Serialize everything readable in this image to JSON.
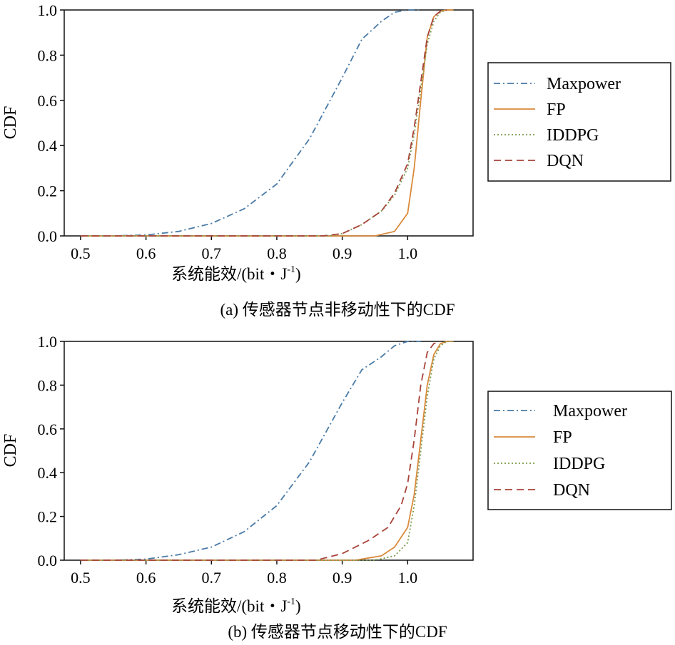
{
  "chart_data": [
    {
      "type": "line",
      "title": "",
      "caption": "(a) 传感器节点非移动性下的CDF",
      "xlabel": "系统能效/(bit・J",
      "xlabel_sup": "-1",
      "xlabel_tail": ")",
      "ylabel": "CDF",
      "xlim": [
        0.475,
        1.1
      ],
      "ylim": [
        0.0,
        1.0
      ],
      "xticks": [
        0.5,
        0.6,
        0.7,
        0.8,
        0.9,
        1.0
      ],
      "xtick_labels": [
        "0.5",
        "0.6",
        "0.7",
        "0.8",
        "0.9",
        "1.0"
      ],
      "yticks": [
        0.0,
        0.2,
        0.4,
        0.6,
        0.8,
        1.0
      ],
      "ytick_labels": [
        "0.0",
        "0.2",
        "0.4",
        "0.6",
        "0.8",
        "1.0"
      ],
      "grid": false,
      "legend_position": "outside-right",
      "series": [
        {
          "name": "Maxpower",
          "color": "#4a7aa6",
          "dash": "dashdot",
          "x": [
            0.5,
            0.55,
            0.6,
            0.65,
            0.7,
            0.75,
            0.8,
            0.85,
            0.9,
            0.93,
            0.96,
            0.98,
            1.0,
            1.02
          ],
          "y": [
            0.0,
            0.0,
            0.004,
            0.02,
            0.055,
            0.12,
            0.23,
            0.43,
            0.7,
            0.87,
            0.95,
            0.99,
            1.0,
            1.0
          ]
        },
        {
          "name": "FP",
          "color": "#d98a3c",
          "dash": "solid",
          "x": [
            0.5,
            0.95,
            0.98,
            1.0,
            1.01,
            1.02,
            1.03,
            1.04,
            1.05,
            1.06,
            1.07
          ],
          "y": [
            0.0,
            0.0,
            0.02,
            0.1,
            0.3,
            0.6,
            0.88,
            0.97,
            0.995,
            1.0,
            1.0
          ]
        },
        {
          "name": "IDDPG",
          "color": "#7a9a4a",
          "dash": "dotted",
          "x": [
            0.5,
            0.88,
            0.9,
            0.93,
            0.96,
            0.98,
            1.0,
            1.01,
            1.02,
            1.03,
            1.04,
            1.05,
            1.06
          ],
          "y": [
            0.0,
            0.0,
            0.01,
            0.05,
            0.11,
            0.18,
            0.3,
            0.45,
            0.65,
            0.85,
            0.95,
            0.99,
            1.0
          ]
        },
        {
          "name": "DQN",
          "color": "#a8433a",
          "dash": "dashed",
          "x": [
            0.5,
            0.87,
            0.9,
            0.93,
            0.96,
            0.98,
            1.0,
            1.01,
            1.02,
            1.03,
            1.04,
            1.05,
            1.06
          ],
          "y": [
            0.0,
            0.0,
            0.01,
            0.05,
            0.11,
            0.19,
            0.32,
            0.48,
            0.68,
            0.88,
            0.97,
            0.995,
            1.0
          ]
        }
      ]
    },
    {
      "type": "line",
      "title": "",
      "caption": "(b) 传感器节点移动性下的CDF",
      "xlabel": "系统能效/(bit・J",
      "xlabel_sup": "-1",
      "xlabel_tail": ")",
      "ylabel": "CDF",
      "xlim": [
        0.475,
        1.1
      ],
      "ylim": [
        0.0,
        1.0
      ],
      "xticks": [
        0.5,
        0.6,
        0.7,
        0.8,
        0.9,
        1.0
      ],
      "xtick_labels": [
        "0.5",
        "0.6",
        "0.7",
        "0.8",
        "0.9",
        "1.0"
      ],
      "yticks": [
        0.0,
        0.2,
        0.4,
        0.6,
        0.8,
        1.0
      ],
      "ytick_labels": [
        "0.0",
        "0.2",
        "0.4",
        "0.6",
        "0.8",
        "1.0"
      ],
      "grid": false,
      "legend_position": "outside-right",
      "series": [
        {
          "name": "Maxpower",
          "color": "#4a7aa6",
          "dash": "dashdot",
          "x": [
            0.5,
            0.55,
            0.6,
            0.65,
            0.7,
            0.75,
            0.8,
            0.85,
            0.9,
            0.93,
            0.96,
            0.98,
            1.0,
            1.02
          ],
          "y": [
            0.0,
            0.0,
            0.005,
            0.025,
            0.06,
            0.13,
            0.25,
            0.45,
            0.72,
            0.87,
            0.93,
            0.98,
            1.0,
            1.0
          ]
        },
        {
          "name": "FP",
          "color": "#d98a3c",
          "dash": "solid",
          "x": [
            0.5,
            0.92,
            0.96,
            0.98,
            1.0,
            1.01,
            1.02,
            1.03,
            1.04,
            1.05,
            1.06,
            1.07
          ],
          "y": [
            0.0,
            0.0,
            0.02,
            0.06,
            0.15,
            0.3,
            0.55,
            0.8,
            0.94,
            0.99,
            1.0,
            1.0
          ]
        },
        {
          "name": "IDDPG",
          "color": "#7a9a4a",
          "dash": "dotted",
          "x": [
            0.5,
            0.95,
            0.98,
            1.0,
            1.01,
            1.02,
            1.03,
            1.04,
            1.05,
            1.06,
            1.07
          ],
          "y": [
            0.0,
            0.0,
            0.02,
            0.08,
            0.25,
            0.5,
            0.75,
            0.92,
            0.98,
            1.0,
            1.0
          ]
        },
        {
          "name": "DQN",
          "color": "#a8433a",
          "dash": "dashed",
          "x": [
            0.5,
            0.86,
            0.9,
            0.94,
            0.97,
            0.99,
            1.0,
            1.01,
            1.02,
            1.03,
            1.04,
            1.05
          ],
          "y": [
            0.0,
            0.0,
            0.03,
            0.09,
            0.15,
            0.25,
            0.35,
            0.55,
            0.8,
            0.95,
            0.99,
            1.0
          ]
        }
      ]
    }
  ]
}
